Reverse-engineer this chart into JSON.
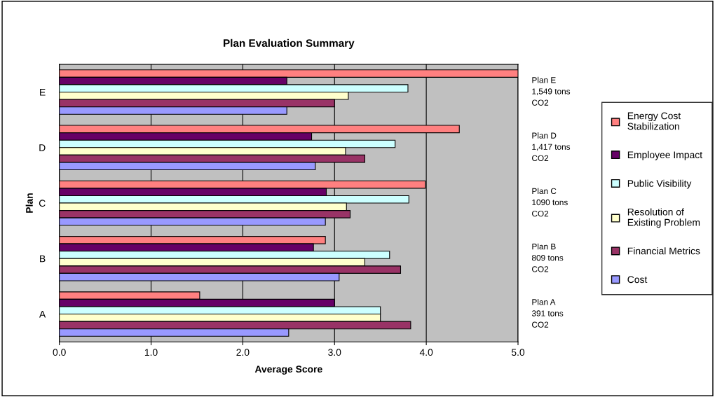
{
  "chart_data": {
    "type": "bar",
    "orientation": "horizontal",
    "title": "Plan Evaluation Summary",
    "xlabel": "Average Score",
    "ylabel": "Plan",
    "categories": [
      "E",
      "D",
      "C",
      "B",
      "A"
    ],
    "series": [
      {
        "name": "Energy Cost\nStabilization",
        "color": "#ff8080",
        "values": [
          5.0,
          4.36,
          3.99,
          2.9,
          1.53
        ]
      },
      {
        "name": "Employee Impact",
        "color": "#660066",
        "values": [
          2.48,
          2.75,
          2.91,
          2.77,
          3.0
        ]
      },
      {
        "name": "Public Visibility",
        "color": "#ccffff",
        "values": [
          3.8,
          3.66,
          3.81,
          3.6,
          3.5
        ]
      },
      {
        "name": "Resolution of\nExisting Problem",
        "color": "#ffffcc",
        "values": [
          3.15,
          3.12,
          3.13,
          3.33,
          3.5
        ]
      },
      {
        "name": "Financial Metrics",
        "color": "#993366",
        "values": [
          3.0,
          3.33,
          3.17,
          3.72,
          3.83
        ]
      },
      {
        "name": "Cost",
        "color": "#9999ff",
        "values": [
          2.48,
          2.79,
          2.9,
          3.05,
          2.5
        ]
      }
    ],
    "xlim": [
      0,
      5
    ],
    "xticks": [
      {
        "value": 0,
        "label": "0.0"
      },
      {
        "value": 1,
        "label": "1.0"
      },
      {
        "value": 2,
        "label": "2.0"
      },
      {
        "value": 3,
        "label": "3.0"
      },
      {
        "value": 4,
        "label": "4.0"
      },
      {
        "value": 5,
        "label": "5.0"
      }
    ],
    "grid": "x",
    "legend": "right",
    "annotations": [
      "Plan E\n1,549 tons\nCO2",
      "Plan D\n1,417 tons\nCO2",
      "Plan C\n1090 tons\nCO2",
      "Plan B\n809 tons\nCO2",
      "Plan A\n391 tons\nCO2"
    ]
  }
}
